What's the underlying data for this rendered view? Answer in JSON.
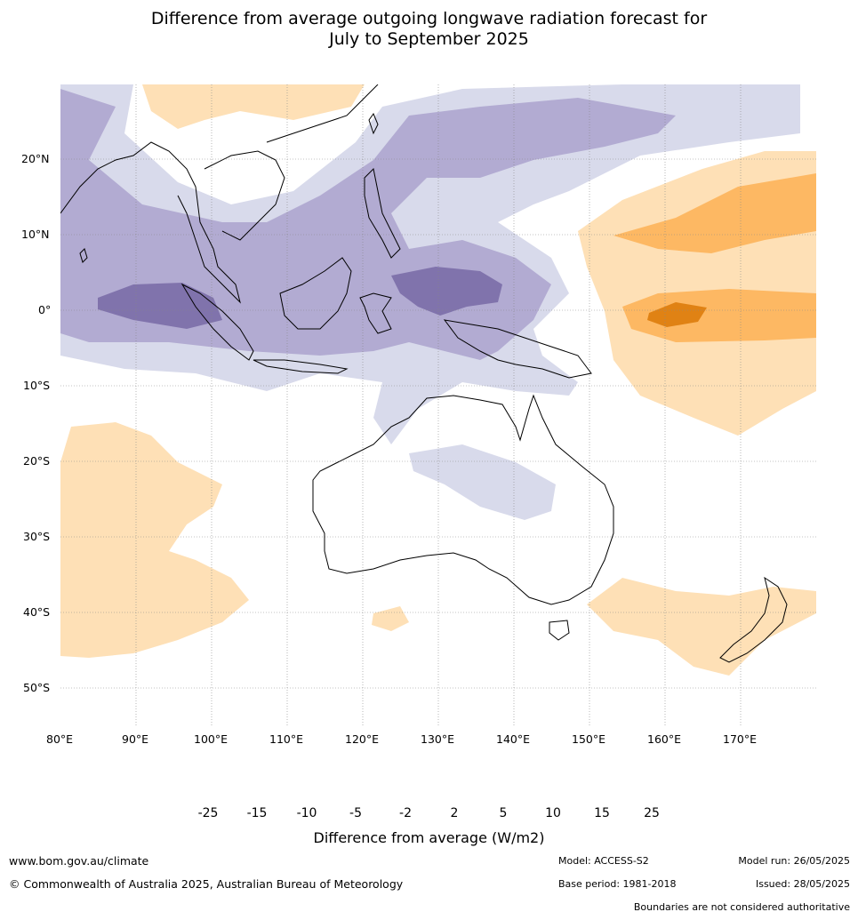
{
  "title": {
    "line1": "Difference from average outgoing longwave radiation forecast for",
    "line2": "July to September 2025"
  },
  "map": {
    "lat_labels": [
      "20°N",
      "10°N",
      "0°",
      "10°S",
      "20°S",
      "30°S",
      "40°S",
      "50°S"
    ],
    "lon_labels": [
      "80°E",
      "90°E",
      "100°E",
      "110°E",
      "120°E",
      "130°E",
      "140°E",
      "150°E",
      "160°E",
      "170°E"
    ]
  },
  "colorbar": {
    "ticks": [
      "-25",
      "-15",
      "-10",
      "-5",
      "-2",
      "2",
      "5",
      "10",
      "15",
      "25"
    ],
    "label": "Difference from average (W/m2)",
    "colors": {
      "below_-25": "#2d004b",
      "-25_-15": "#542788",
      "-15_-10": "#8073ac",
      "-10_-5": "#b2abd2",
      "-5_-2": "#d8daeb",
      "-2_2": "#ffffff",
      "2_5": "#fee0b6",
      "5_10": "#fdb863",
      "10_15": "#e08214",
      "15_25": "#b35806",
      "above_25": "#7f3b08"
    }
  },
  "footer": {
    "website": "www.bom.gov.au/climate",
    "copyright": "© Commonwealth of Australia 2025, Australian Bureau of Meteorology",
    "model": "Model: ACCESS-S2",
    "base_period": "Base period: 1981-2018",
    "model_run": "Model run: 26/05/2025",
    "issued": "Issued: 28/05/2025",
    "disclaimer": "Boundaries are not considered authoritative"
  }
}
